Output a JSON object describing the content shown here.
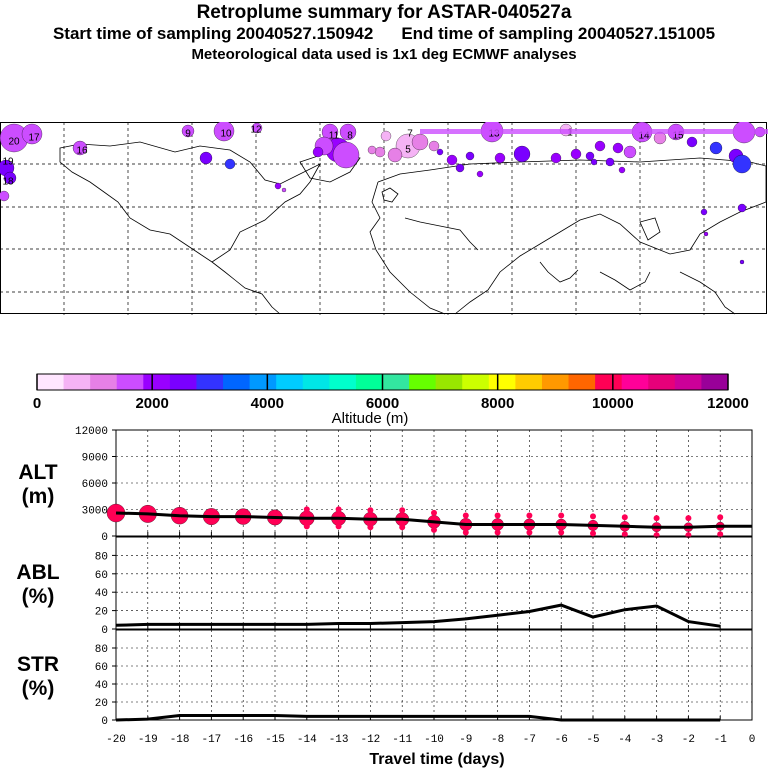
{
  "header": {
    "title": "Retroplume summary for ASTAR-040527a",
    "line2_start": "Start time of sampling 20040527.150942",
    "line2_end": "End time of sampling 20040527.151005",
    "line3": "Meteorological data used is 1x1 deg ECMWF analyses"
  },
  "map": {
    "day_labels": [
      "20",
      "17",
      "19",
      "18",
      "16",
      "9",
      "10",
      "11",
      "8",
      "12",
      "7",
      "13",
      "1",
      "5",
      "14",
      "15"
    ]
  },
  "colorbar": {
    "colors": [
      "#ffe6ff",
      "#f5b3f5",
      "#e680e6",
      "#cc4dff",
      "#9900ff",
      "#7a00ff",
      "#3333ff",
      "#0066ff",
      "#0099ff",
      "#00ccff",
      "#00e6e6",
      "#00ffcc",
      "#00ff99",
      "#33e6a0",
      "#66ff00",
      "#99e600",
      "#ccff00",
      "#ffff00",
      "#ffcc00",
      "#ff9900",
      "#ff6600",
      "#ff0055",
      "#ff0099",
      "#e6007a",
      "#cc0099",
      "#990099"
    ],
    "tick_labels": [
      "0",
      "2000",
      "4000",
      "6000",
      "8000",
      "10000",
      "12000"
    ],
    "label": "Altitude (m)"
  },
  "chart_data": [
    {
      "type": "line",
      "name": "ALT",
      "title": "ALT (m)",
      "ylabel": "ALT",
      "yunit": "(m)",
      "ylim": [
        0,
        12000
      ],
      "yticks": [
        "12000",
        "9000",
        "6000",
        "3000",
        "0"
      ],
      "x": [
        -20,
        -19,
        -18,
        -17,
        -16,
        -15,
        -14,
        -13,
        -12,
        -11,
        -10,
        -9,
        -8,
        -7,
        -6,
        -5,
        -4,
        -3,
        -2,
        -1,
        0
      ],
      "values": [
        2600,
        2500,
        2300,
        2200,
        2200,
        2100,
        2000,
        2000,
        1900,
        1900,
        1600,
        1300,
        1300,
        1300,
        1300,
        1200,
        1100,
        1000,
        1000,
        1100,
        1100
      ],
      "marker_color": "#ff0055"
    },
    {
      "type": "line",
      "name": "ABL",
      "ylabel": "ABL",
      "yunit": "(%)",
      "ylim": [
        0,
        100
      ],
      "yticks": [
        "80",
        "60",
        "40",
        "20",
        "0"
      ],
      "x": [
        -20,
        -19,
        -18,
        -17,
        -16,
        -15,
        -14,
        -13,
        -12,
        -11,
        -10,
        -9,
        -8,
        -7,
        -6,
        -5,
        -4,
        -3,
        -2,
        -1
      ],
      "values": [
        4,
        5,
        5,
        5,
        5,
        5,
        5,
        6,
        6,
        7,
        8,
        11,
        15,
        19,
        26,
        13,
        21,
        25,
        8,
        3
      ]
    },
    {
      "type": "line",
      "name": "STR",
      "ylabel": "STR",
      "yunit": "(%)",
      "ylim": [
        0,
        100
      ],
      "yticks": [
        "80",
        "60",
        "40",
        "20",
        "0"
      ],
      "x": [
        -20,
        -19,
        -18,
        -17,
        -16,
        -15,
        -14,
        -13,
        -12,
        -11,
        -10,
        -9,
        -8,
        -7,
        -6,
        -5,
        -4,
        -3,
        -2,
        -1
      ],
      "values": [
        0,
        1,
        5,
        5,
        5,
        5,
        4,
        4,
        4,
        4,
        4,
        4,
        4,
        4,
        0,
        0,
        0,
        0,
        0,
        0
      ]
    }
  ],
  "xaxis": {
    "tick_labels": [
      "-20",
      "-19",
      "-18",
      "-17",
      "-16",
      "-15",
      "-14",
      "-13",
      "-12",
      "-11",
      "-10",
      "-9",
      "-8",
      "-7",
      "-6",
      "-5",
      "-4",
      "-3",
      "-2",
      "-1",
      "0"
    ],
    "xlabel": "Travel time (days)"
  }
}
